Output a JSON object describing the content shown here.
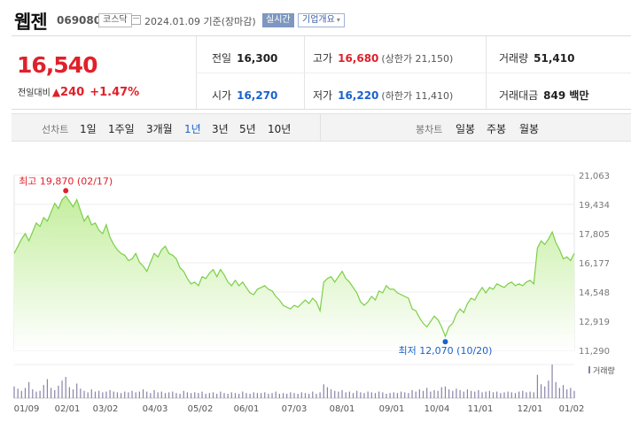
{
  "header": {
    "stock_name": "웹젠",
    "stock_code": "069080",
    "market_badge": "코스닥",
    "as_of": "2024.01.09 기준(장마감)",
    "realtime_button": "실시간",
    "company_info_button": "기업개요",
    "company_info_caret": "▾"
  },
  "quote": {
    "price": "16,540",
    "change_label": "전일대비",
    "change_arrow": "▲",
    "change_value": "240",
    "change_percent": "+1.47%",
    "prev_close": {
      "label": "전일",
      "value": "16,300"
    },
    "open": {
      "label": "시가",
      "value": "16,270"
    },
    "high": {
      "label": "고가",
      "value": "16,680",
      "limit": "(상한가 21,150)"
    },
    "low": {
      "label": "저가",
      "value": "16,220",
      "limit": "(하한가 11,410)"
    },
    "volume": {
      "label": "거래량",
      "value": "51,410"
    },
    "trade_value": {
      "label": "거래대금",
      "value": "849 백만"
    }
  },
  "period_bar": {
    "line_chart_label": "선차트",
    "line_periods": [
      "1일",
      "1주일",
      "3개월",
      "1년",
      "3년",
      "5년",
      "10년"
    ],
    "selected_line_period": 3,
    "candle_chart_label": "봉차트",
    "candle_periods": [
      "일봉",
      "주봉",
      "월봉"
    ]
  },
  "colors": {
    "up": "#e0202a",
    "down": "#1a62cc",
    "line": "#7ccf47",
    "fill_top": "#c4ee9f",
    "fill_bottom": "#ffffff",
    "volume_bar": "#8a82a8"
  },
  "chart_data": {
    "type": "area",
    "title": "",
    "y_ticks": [
      "21,063",
      "19,434",
      "17,805",
      "16,177",
      "14,548",
      "12,919",
      "11,290"
    ],
    "ylim": [
      11290,
      21063
    ],
    "x_ticks": [
      "01/09",
      "02/01",
      "03/02",
      "04/03",
      "05/02",
      "06/01",
      "07/03",
      "08/01",
      "09/01",
      "10/04",
      "11/01",
      "12/01",
      "01/02"
    ],
    "annotations": {
      "high": {
        "label": "최고 19,870 (02/17)",
        "value": 19870
      },
      "low": {
        "label": "최저 12,070 (10/20)",
        "value": 12070
      }
    },
    "volume_legend": "거래량",
    "series": [
      {
        "values": [
          16700,
          17100,
          17500,
          17800,
          17400,
          17900,
          18400,
          18200,
          18700,
          18500,
          19000,
          19500,
          19200,
          19700,
          19900,
          19600,
          19300,
          19700,
          19100,
          18500,
          18800,
          18300,
          18400,
          18000,
          17800,
          18300,
          17600,
          17200,
          16900,
          16700,
          16600,
          16300,
          16400,
          16700,
          16200,
          16000,
          15700,
          16200,
          16700,
          16500,
          16900,
          17100,
          16700,
          16600,
          16400,
          15900,
          15700,
          15300,
          15000,
          15100,
          14900,
          15400,
          15300,
          15600,
          15800,
          15400,
          15800,
          15500,
          15100,
          14900,
          15200,
          14900,
          15100,
          14800,
          14500,
          14400,
          14700,
          14800,
          14900,
          14700,
          14600,
          14300,
          14100,
          13800,
          13700,
          13600,
          13800,
          13700,
          13900,
          14100,
          13900,
          14200,
          14000,
          13500,
          15100,
          15300,
          15400,
          15100,
          15400,
          15700,
          15300,
          15100,
          14800,
          14500,
          14000,
          13800,
          14000,
          14300,
          14100,
          14600,
          14500,
          14900,
          14700,
          14700,
          14500,
          14400,
          14300,
          14200,
          13600,
          13500,
          13100,
          12800,
          12600,
          12900,
          13200,
          13000,
          12600,
          12070,
          12600,
          12800,
          13300,
          13600,
          13400,
          13900,
          14200,
          14100,
          14500,
          14800,
          14500,
          14800,
          14700,
          15000,
          14900,
          14800,
          15000,
          15100,
          14900,
          15000,
          14900,
          15100,
          15200,
          15000,
          17000,
          17400,
          17200,
          17500,
          17900,
          17300,
          16900,
          16400,
          16500,
          16300,
          16700
        ]
      }
    ],
    "volume": [
      1.6,
      1.3,
      1.0,
      1.4,
      2.2,
      1.2,
      0.9,
      1.0,
      1.8,
      2.6,
      1.4,
      1.1,
      1.7,
      2.4,
      2.9,
      1.5,
      1.2,
      2.0,
      1.3,
      1.0,
      0.8,
      1.2,
      0.9,
      1.0,
      0.8,
      0.9,
      1.1,
      0.9,
      0.8,
      0.7,
      0.9,
      0.8,
      1.0,
      0.8,
      0.9,
      1.2,
      0.9,
      0.7,
      1.1,
      0.8,
      0.9,
      0.7,
      0.8,
      0.9,
      0.7,
      0.6,
      1.0,
      0.8,
      0.7,
      0.8,
      0.7,
      0.9,
      0.6,
      0.7,
      0.8,
      0.6,
      0.9,
      0.7,
      0.6,
      0.8,
      0.7,
      0.6,
      0.9,
      0.7,
      0.6,
      0.8,
      0.7,
      0.7,
      0.8,
      0.6,
      0.7,
      0.9,
      0.6,
      0.7,
      0.6,
      0.8,
      0.7,
      0.6,
      0.8,
      0.7,
      0.6,
      0.9,
      0.6,
      0.8,
      1.9,
      1.5,
      1.2,
      1.0,
      0.9,
      1.1,
      0.8,
      0.9,
      0.7,
      1.0,
      0.8,
      0.7,
      0.9,
      0.8,
      0.7,
      0.9,
      0.8,
      0.6,
      0.7,
      0.8,
      0.7,
      0.9,
      0.8,
      0.7,
      1.1,
      0.9,
      1.2,
      1.0,
      1.4,
      0.9,
      1.1,
      1.0,
      1.5,
      1.6,
      1.2,
      1.0,
      1.3,
      1.1,
      0.9,
      1.2,
      1.0,
      0.9,
      1.1,
      0.8,
      0.9,
      1.0,
      0.8,
      0.9,
      0.7,
      0.8,
      0.9,
      0.8,
      0.7,
      0.9,
      1.0,
      0.8,
      0.9,
      0.8,
      3.2,
      1.9,
      1.6,
      2.4,
      4.6,
      2.2,
      1.4,
      1.8,
      1.2,
      1.4,
      1.0
    ]
  }
}
